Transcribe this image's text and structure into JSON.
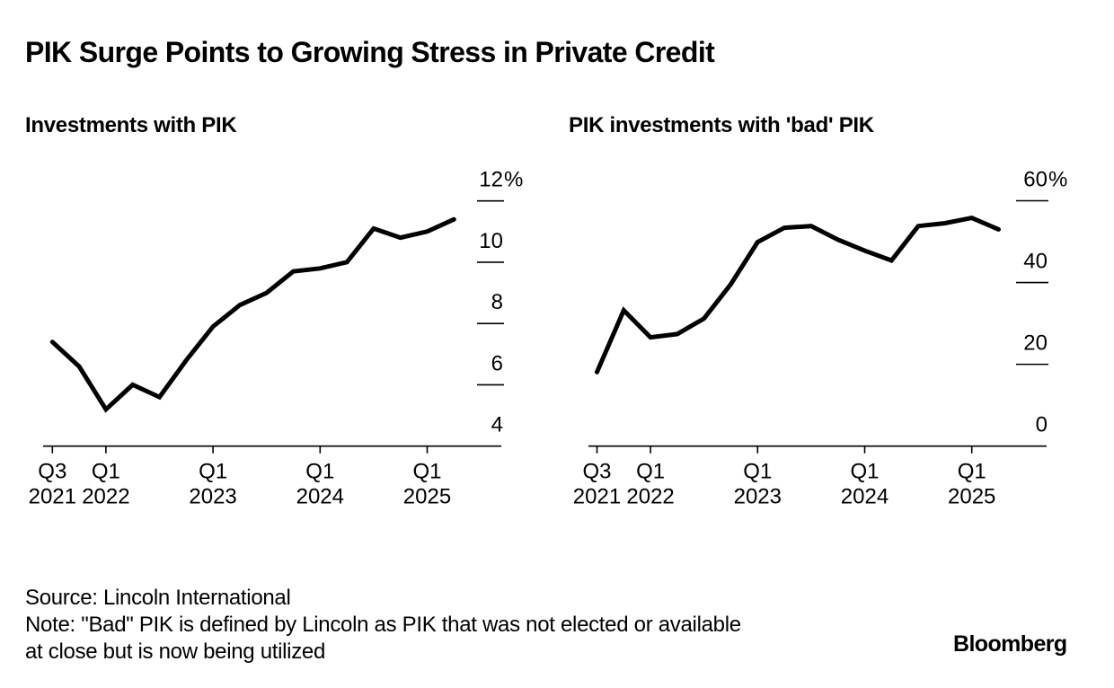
{
  "header": {
    "title": "PIK Surge Points to Growing Stress in Private Credit"
  },
  "chart_data": [
    {
      "type": "line",
      "title": "Investments with PIK",
      "xlabel": "",
      "ylabel": "",
      "x": [
        "Q3 2021",
        "Q4 2021",
        "Q1 2022",
        "Q2 2022",
        "Q3 2022",
        "Q4 2022",
        "Q1 2023",
        "Q2 2023",
        "Q3 2023",
        "Q4 2023",
        "Q1 2024",
        "Q2 2024",
        "Q3 2024",
        "Q4 2024",
        "Q1 2025",
        "Q2 2025"
      ],
      "series": [
        {
          "name": "Investments with PIK (%)",
          "values": [
            7.4,
            6.6,
            5.2,
            6.0,
            5.6,
            6.8,
            7.9,
            8.6,
            9.0,
            9.7,
            9.8,
            10.0,
            11.1,
            10.8,
            11.0,
            11.4
          ]
        }
      ],
      "ylim": [
        4,
        12
      ],
      "yticks": [
        {
          "value": 12,
          "label": "12%"
        },
        {
          "value": 10,
          "label": "10"
        },
        {
          "value": 8,
          "label": "8"
        },
        {
          "value": 6,
          "label": "6"
        },
        {
          "value": 4,
          "label": "4"
        }
      ],
      "xticks": [
        {
          "index": 0,
          "line1": "Q3",
          "line2": "2021"
        },
        {
          "index": 2,
          "line1": "Q1",
          "line2": "2022"
        },
        {
          "index": 6,
          "line1": "Q1",
          "line2": "2023"
        },
        {
          "index": 10,
          "line1": "Q1",
          "line2": "2024"
        },
        {
          "index": 14,
          "line1": "Q1",
          "line2": "2025"
        }
      ],
      "line_color": "#000000",
      "grid": false,
      "axis_side": "right"
    },
    {
      "type": "line",
      "title": "PIK investments with 'bad' PIK",
      "xlabel": "",
      "ylabel": "",
      "x": [
        "Q3 2021",
        "Q4 2021",
        "Q1 2022",
        "Q2 2022",
        "Q3 2022",
        "Q4 2022",
        "Q1 2023",
        "Q2 2023",
        "Q3 2023",
        "Q4 2023",
        "Q1 2024",
        "Q2 2024",
        "Q3 2024",
        "Q4 2024",
        "Q1 2025",
        "Q2 2025"
      ],
      "series": [
        {
          "name": "Share with 'bad' PIK (%)",
          "values": [
            18.1,
            33.2,
            26.6,
            27.4,
            31.2,
            39.6,
            49.9,
            53.4,
            53.8,
            50.5,
            47.8,
            45.4,
            53.8,
            54.5,
            55.8,
            53.0
          ]
        }
      ],
      "ylim": [
        0,
        60
      ],
      "yticks": [
        {
          "value": 60,
          "label": "60%"
        },
        {
          "value": 40,
          "label": "40"
        },
        {
          "value": 20,
          "label": "20"
        },
        {
          "value": 0,
          "label": "0"
        }
      ],
      "xticks": [
        {
          "index": 0,
          "line1": "Q3",
          "line2": "2021"
        },
        {
          "index": 2,
          "line1": "Q1",
          "line2": "2022"
        },
        {
          "index": 6,
          "line1": "Q1",
          "line2": "2023"
        },
        {
          "index": 10,
          "line1": "Q1",
          "line2": "2024"
        },
        {
          "index": 14,
          "line1": "Q1",
          "line2": "2025"
        }
      ],
      "line_color": "#000000",
      "grid": false,
      "axis_side": "right"
    }
  ],
  "footer": {
    "source": "Source: Lincoln International",
    "note_line1": "Note: \"Bad\" PIK is defined by Lincoln as PIK that was not elected or available",
    "note_line2": "at close but is now being utilized",
    "brand": "Bloomberg"
  }
}
